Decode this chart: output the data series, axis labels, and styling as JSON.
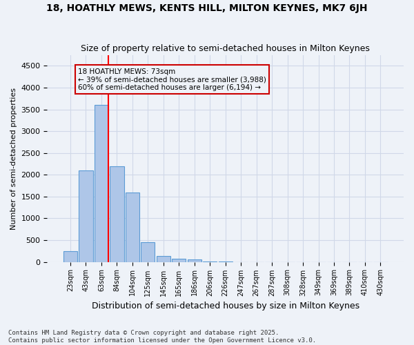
{
  "title1": "18, HOATHLY MEWS, KENTS HILL, MILTON KEYNES, MK7 6JH",
  "title2": "Size of property relative to semi-detached houses in Milton Keynes",
  "xlabel": "Distribution of semi-detached houses by size in Milton Keynes",
  "ylabel": "Number of semi-detached properties",
  "bins": [
    "23sqm",
    "43sqm",
    "63sqm",
    "84sqm",
    "104sqm",
    "125sqm",
    "145sqm",
    "165sqm",
    "186sqm",
    "206sqm",
    "226sqm",
    "247sqm",
    "267sqm",
    "287sqm",
    "308sqm",
    "328sqm",
    "349sqm",
    "369sqm",
    "389sqm",
    "410sqm",
    "430sqm"
  ],
  "values": [
    250,
    2100,
    3600,
    2200,
    1600,
    450,
    130,
    70,
    50,
    5,
    2,
    1,
    0,
    0,
    0,
    0,
    0,
    0,
    0,
    0,
    0
  ],
  "bar_color": "#aec6e8",
  "bar_edge_color": "#5b9bd5",
  "red_line_bin_index": 2,
  "annotation_line1": "18 HOATHLY MEWS: 73sqm",
  "annotation_line2": "← 39% of semi-detached houses are smaller (3,988)",
  "annotation_line3": "60% of semi-detached houses are larger (6,194) →",
  "ylim": [
    0,
    4750
  ],
  "yticks": [
    0,
    500,
    1000,
    1500,
    2000,
    2500,
    3000,
    3500,
    4000,
    4500
  ],
  "grid_color": "#d0d8e8",
  "bg_color": "#eef2f8",
  "footer1": "Contains HM Land Registry data © Crown copyright and database right 2025.",
  "footer2": "Contains public sector information licensed under the Open Government Licence v3.0.",
  "annotation_box_color": "#cc0000"
}
